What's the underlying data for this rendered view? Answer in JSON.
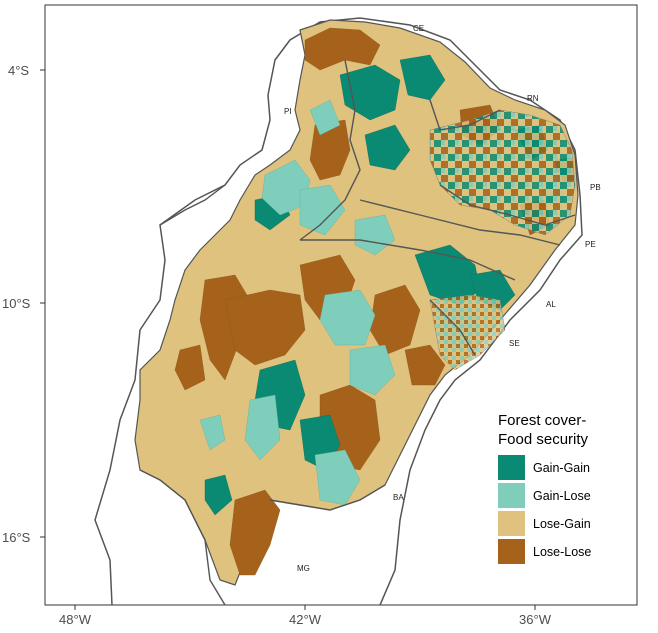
{
  "map": {
    "y_axis_labels": [
      "4°S",
      "10°S",
      "16°S"
    ],
    "x_axis_labels": [
      "48°W",
      "42°W",
      "36°W"
    ],
    "state_labels": [
      "CE",
      "RN",
      "PI",
      "PB",
      "PE",
      "AL",
      "SE",
      "BA",
      "MG"
    ]
  },
  "legend": {
    "title_line1": "Forest cover-",
    "title_line2": "Food security",
    "items": [
      {
        "label": "Gain-Gain",
        "color": "#0a8a72"
      },
      {
        "label": "Gain-Lose",
        "color": "#7fcdbb"
      },
      {
        "label": "Lose-Gain",
        "color": "#dfc27d"
      },
      {
        "label": "Lose-Lose",
        "color": "#a6611a"
      }
    ]
  },
  "colors": {
    "state_border": "#555555",
    "background": "#ffffff"
  }
}
